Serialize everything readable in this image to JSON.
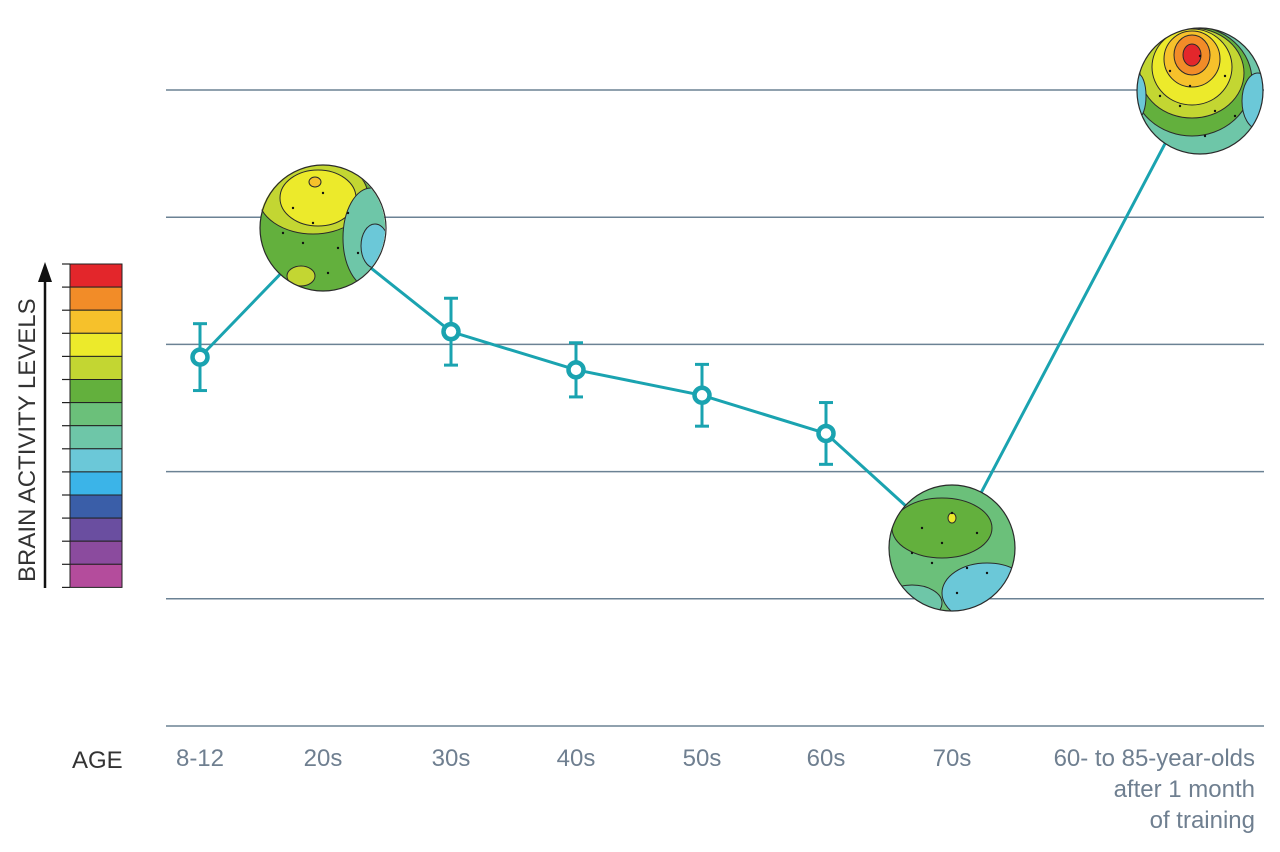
{
  "chart_data": {
    "type": "line",
    "ylabel": "BRAIN ACTIVITY LEVELS",
    "xlabel": "AGE",
    "categories": [
      "8-12",
      "20s",
      "30s",
      "40s",
      "50s",
      "60s",
      "70s",
      "60- to 85-year-olds after 1 month of training"
    ],
    "category_lines": [
      [
        "8-12"
      ],
      [
        "20s"
      ],
      [
        "30s"
      ],
      [
        "40s"
      ],
      [
        "50s"
      ],
      [
        "60s"
      ],
      [
        "70s"
      ],
      [
        "60- to 85-year-olds",
        "after 1 month",
        "of training"
      ]
    ],
    "series": [
      {
        "values": [
          2.9,
          3.9,
          3.1,
          2.8,
          2.6,
          2.3,
          1.4,
          5.1
        ],
        "error": [
          0.2,
          null,
          0.2,
          0.15,
          0.18,
          0.18,
          null,
          null
        ],
        "marker": [
          "circle",
          "brain-map",
          "circle",
          "circle",
          "circle",
          "circle",
          "brain-map",
          "brain-map"
        ]
      }
    ],
    "ylim": [
      0,
      6
    ],
    "gridlines": [
      0,
      1,
      2,
      3,
      4,
      5
    ],
    "grid": true,
    "line_color": "#1aa3b0",
    "grid_color": "#6b8294",
    "color_scale": [
      "#e3262b",
      "#f28c28",
      "#f6c12b",
      "#ecea2b",
      "#c3d632",
      "#63b03d",
      "#6bc07a",
      "#6ec6a8",
      "#6bc8d8",
      "#3bb4e8",
      "#3a5ea8",
      "#6a4ea0",
      "#8b4b9e",
      "#b44c9c"
    ]
  }
}
